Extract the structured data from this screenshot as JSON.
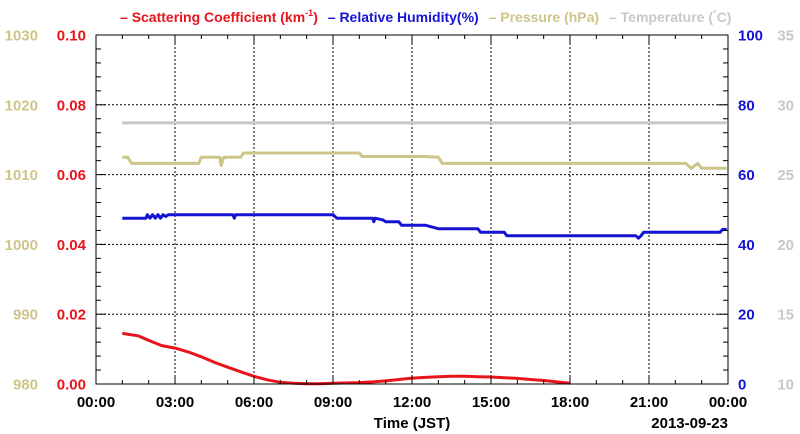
{
  "chart_data": {
    "type": "line",
    "legend": {
      "placement": "top",
      "entries": [
        {
          "key": "scattering",
          "prefix": "– ",
          "text": "Scattering Coefficient (km",
          "sup": "-1",
          "suffix": ")",
          "color": "#e8141c"
        },
        {
          "key": "humidity",
          "prefix": "– ",
          "text": "Relative Humidity(%)",
          "color": "#1414d2"
        },
        {
          "key": "pressure",
          "prefix": "– ",
          "text": "Pressure (hPa)",
          "color": "#cdc58a"
        },
        {
          "key": "temperature",
          "prefix": "– ",
          "text": "Temperature (",
          "sup": "°",
          "suffix": "C)",
          "color": "#c8c8c8"
        }
      ]
    },
    "xlabel": "Time (JST)",
    "date_label": "2013-09-23",
    "x_range": [
      0,
      24
    ],
    "x_ticks": [
      "00:00",
      "03:00",
      "06:00",
      "09:00",
      "12:00",
      "15:00",
      "18:00",
      "21:00",
      "00:00"
    ],
    "grid": true,
    "axes": {
      "scattering": {
        "side": "left-inner",
        "range": [
          0,
          0.1
        ],
        "ticks": [
          "0.00",
          "0.02",
          "0.04",
          "0.06",
          "0.08",
          "0.10"
        ],
        "color": "#e8141c"
      },
      "pressure": {
        "side": "left-outer",
        "range": [
          980,
          1030
        ],
        "ticks": [
          "980",
          "990",
          "1000",
          "1010",
          "1020",
          "1030"
        ],
        "color": "#cdc58a"
      },
      "humidity": {
        "side": "right-inner",
        "range": [
          0,
          100
        ],
        "ticks": [
          "0",
          "20",
          "40",
          "60",
          "80",
          "100"
        ],
        "color": "#1414d2"
      },
      "temperature": {
        "side": "right-outer",
        "range": [
          10,
          35
        ],
        "ticks": [
          "10",
          "15",
          "20",
          "25",
          "30",
          "35"
        ],
        "color": "#c8c8c8"
      }
    },
    "series": [
      {
        "name": "Temperature (°C)",
        "axis": "temperature",
        "color": "#c8c8c8",
        "x": [
          1.0,
          23.95
        ],
        "y": [
          28.7,
          28.7
        ]
      },
      {
        "name": "Pressure (hPa)",
        "axis": "pressure",
        "color": "#cdc58a",
        "x": [
          1.0,
          1.2,
          1.35,
          1.5,
          3.0,
          3.9,
          4.0,
          4.7,
          4.75,
          4.85,
          4.95,
          5.5,
          5.6,
          8.5,
          9.1,
          10.0,
          10.1,
          12.5,
          13.0,
          13.15,
          16.0,
          22.4,
          22.6,
          22.85,
          23.0,
          23.2,
          23.95
        ],
        "y": [
          1012.5,
          1012.5,
          1011.6,
          1011.6,
          1011.6,
          1011.6,
          1012.5,
          1012.5,
          1011.3,
          1012.5,
          1012.5,
          1012.5,
          1013.1,
          1013.1,
          1013.1,
          1013.1,
          1012.6,
          1012.6,
          1012.5,
          1011.6,
          1011.6,
          1011.6,
          1010.9,
          1011.6,
          1010.9,
          1010.9,
          1010.9
        ]
      },
      {
        "name": "Relative Humidity(%)",
        "axis": "humidity",
        "color": "#1414d2",
        "x": [
          1.0,
          1.9,
          1.95,
          2.05,
          2.15,
          2.25,
          2.35,
          2.45,
          2.55,
          2.65,
          2.75,
          4.0,
          5.2,
          5.25,
          5.3,
          9.0,
          9.15,
          9.3,
          10.5,
          10.55,
          10.6,
          10.9,
          11.0,
          11.5,
          11.6,
          12.5,
          13.0,
          13.1,
          14.5,
          14.6,
          15.5,
          15.6,
          17.0,
          18.5,
          20.5,
          20.6,
          20.7,
          20.8,
          23.7,
          23.8,
          23.95
        ],
        "y": [
          47.5,
          47.5,
          48.5,
          47.5,
          48.5,
          47.5,
          48.5,
          47.5,
          48.5,
          48,
          48.5,
          48.5,
          48.5,
          47.5,
          48.5,
          48.5,
          47.5,
          47.5,
          47.5,
          46.5,
          47.5,
          47,
          46.5,
          46.5,
          45.5,
          45.5,
          44.5,
          44.5,
          44.5,
          43.5,
          43.5,
          42.5,
          42.5,
          42.5,
          42.5,
          41.8,
          42.5,
          43.5,
          43.5,
          44.3,
          44.3
        ]
      },
      {
        "name": "Scattering Coefficient (km-1)",
        "axis": "scattering",
        "color": "#e8141c",
        "x": [
          1.0,
          1.6,
          2.0,
          2.5,
          3.0,
          3.5,
          4.0,
          4.5,
          5.0,
          5.5,
          6.0,
          6.5,
          7.0,
          7.5,
          8.0,
          8.5,
          9.0,
          10.0,
          10.5,
          11.0,
          11.5,
          12.0,
          12.5,
          13.0,
          13.5,
          14.0,
          14.5,
          15.0,
          15.5,
          16.0,
          16.5,
          17.0,
          17.5,
          18.0
        ],
        "y": [
          0.0145,
          0.0138,
          0.0125,
          0.011,
          0.0103,
          0.0092,
          0.0078,
          0.0062,
          0.0048,
          0.0035,
          0.0022,
          0.0012,
          0.0005,
          0.0002,
          0.0001,
          0.0001,
          0.0002,
          0.0004,
          0.0006,
          0.0009,
          0.0013,
          0.0017,
          0.0019,
          0.0021,
          0.0022,
          0.0022,
          0.0021,
          0.002,
          0.0018,
          0.0016,
          0.0013,
          0.001,
          0.0006,
          0.0002
        ]
      }
    ]
  }
}
